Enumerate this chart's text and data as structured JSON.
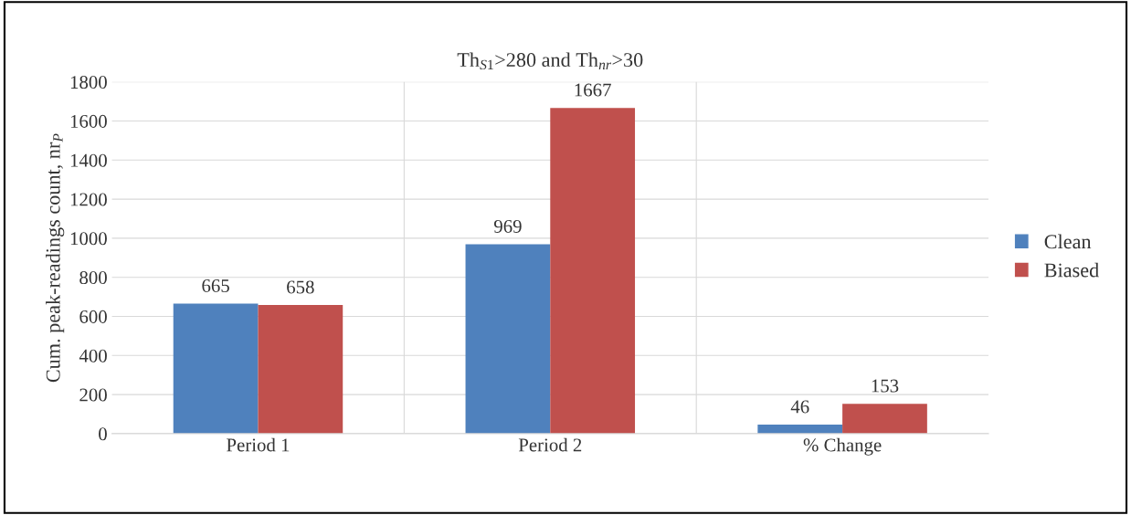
{
  "chart_data": {
    "type": "bar",
    "title": "Th$_{S1}$>280 and Th$_{nr}$>30",
    "ylabel": "Cum. peak-readings count, nr$_{P}$",
    "categories": [
      "Period 1",
      "Period 2",
      "% Change"
    ],
    "series": [
      {
        "name": "Clean",
        "color": "#4f81bd",
        "values": [
          665,
          969,
          46
        ]
      },
      {
        "name": "Biased",
        "color": "#c0504d",
        "values": [
          658,
          1667,
          153
        ]
      }
    ],
    "ylim": [
      0,
      1800
    ],
    "yticks": [
      0,
      200,
      400,
      600,
      800,
      1000,
      1200,
      1400,
      1600,
      1800
    ],
    "grid": true,
    "legend": "right",
    "data_labels": true
  }
}
